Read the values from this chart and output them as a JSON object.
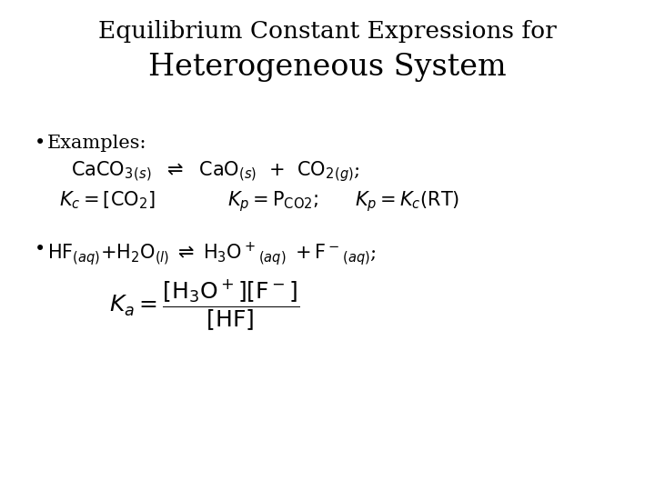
{
  "background_color": "#ffffff",
  "title_line1": "Equilibrium Constant Expressions for",
  "title_line2": "Heterogeneous System",
  "title_fontsize": 19,
  "title_line2_fontsize": 24,
  "body_fontsize": 15,
  "math_fontsize": 15
}
